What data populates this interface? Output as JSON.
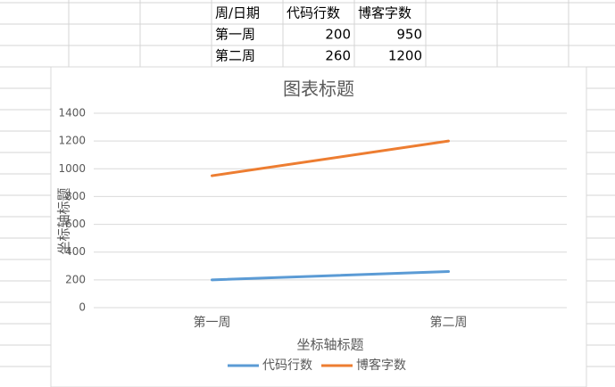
{
  "table": {
    "header": [
      "周/日期",
      "代码行数",
      "博客字数"
    ],
    "rows": [
      [
        "第一周",
        200,
        950
      ],
      [
        "第二周",
        260,
        1200
      ]
    ]
  },
  "chart_data": {
    "type": "line",
    "title": "图表标题",
    "x_label": "坐标轴标题",
    "y_label": "坐标轴标题",
    "categories": [
      "第一周",
      "第二周"
    ],
    "series": [
      {
        "name": "代码行数",
        "color": "#5b9bd5",
        "values": [
          200,
          260
        ]
      },
      {
        "name": "博客字数",
        "color": "#ed7d31",
        "values": [
          950,
          1200
        ]
      }
    ],
    "ylim": [
      0,
      1400
    ],
    "yticks": [
      0,
      200,
      400,
      600,
      800,
      1000,
      1200,
      1400
    ],
    "grid": true,
    "legend": "bottom"
  }
}
